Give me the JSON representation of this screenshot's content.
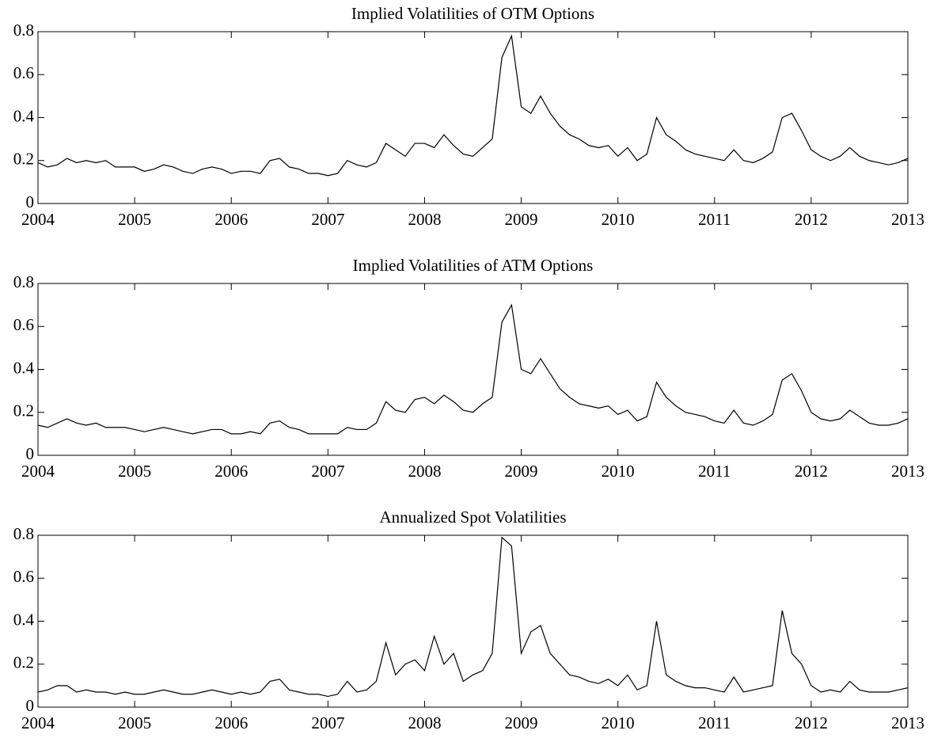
{
  "chart_data": [
    {
      "type": "line",
      "title": "Implied Volatilities of OTM Options",
      "x": [
        2004.0,
        2004.1,
        2004.2,
        2004.3,
        2004.4,
        2004.5,
        2004.6,
        2004.7,
        2004.8,
        2004.9,
        2005.0,
        2005.1,
        2005.2,
        2005.3,
        2005.4,
        2005.5,
        2005.6,
        2005.7,
        2005.8,
        2005.9,
        2006.0,
        2006.1,
        2006.2,
        2006.3,
        2006.4,
        2006.5,
        2006.6,
        2006.7,
        2006.8,
        2006.9,
        2007.0,
        2007.1,
        2007.2,
        2007.3,
        2007.4,
        2007.5,
        2007.6,
        2007.7,
        2007.8,
        2007.9,
        2008.0,
        2008.1,
        2008.2,
        2008.3,
        2008.4,
        2008.5,
        2008.6,
        2008.7,
        2008.8,
        2008.9,
        2009.0,
        2009.1,
        2009.2,
        2009.3,
        2009.4,
        2009.5,
        2009.6,
        2009.7,
        2009.8,
        2009.9,
        2010.0,
        2010.1,
        2010.2,
        2010.3,
        2010.4,
        2010.5,
        2010.6,
        2010.7,
        2010.8,
        2010.9,
        2011.0,
        2011.1,
        2011.2,
        2011.3,
        2011.4,
        2011.5,
        2011.6,
        2011.7,
        2011.8,
        2011.9,
        2012.0,
        2012.1,
        2012.2,
        2012.3,
        2012.4,
        2012.5,
        2012.6,
        2012.7,
        2012.8,
        2012.9,
        2013.0
      ],
      "series": [
        {
          "color": "#000000",
          "values": [
            0.19,
            0.17,
            0.18,
            0.21,
            0.19,
            0.2,
            0.19,
            0.2,
            0.17,
            0.17,
            0.17,
            0.15,
            0.16,
            0.18,
            0.17,
            0.15,
            0.14,
            0.16,
            0.17,
            0.16,
            0.14,
            0.15,
            0.15,
            0.14,
            0.2,
            0.21,
            0.17,
            0.16,
            0.14,
            0.14,
            0.13,
            0.14,
            0.2,
            0.18,
            0.17,
            0.19,
            0.28,
            0.25,
            0.22,
            0.28,
            0.28,
            0.26,
            0.32,
            0.27,
            0.23,
            0.22,
            0.26,
            0.3,
            0.68,
            0.78,
            0.45,
            0.42,
            0.5,
            0.42,
            0.36,
            0.32,
            0.3,
            0.27,
            0.26,
            0.27,
            0.22,
            0.26,
            0.2,
            0.23,
            0.4,
            0.32,
            0.29,
            0.25,
            0.23,
            0.22,
            0.21,
            0.2,
            0.25,
            0.2,
            0.19,
            0.21,
            0.24,
            0.4,
            0.42,
            0.34,
            0.25,
            0.22,
            0.2,
            0.22,
            0.26,
            0.22,
            0.2,
            0.19,
            0.18,
            0.19,
            0.21
          ]
        }
      ],
      "xlim": [
        2004,
        2013
      ],
      "ylim": [
        0,
        0.8
      ],
      "xticks": [
        2004,
        2005,
        2006,
        2007,
        2008,
        2009,
        2010,
        2011,
        2012,
        2013
      ],
      "yticks": [
        0,
        0.2,
        0.4,
        0.6,
        0.8
      ]
    },
    {
      "type": "line",
      "title": "Implied Volatilities of ATM Options",
      "x": [
        2004.0,
        2004.1,
        2004.2,
        2004.3,
        2004.4,
        2004.5,
        2004.6,
        2004.7,
        2004.8,
        2004.9,
        2005.0,
        2005.1,
        2005.2,
        2005.3,
        2005.4,
        2005.5,
        2005.6,
        2005.7,
        2005.8,
        2005.9,
        2006.0,
        2006.1,
        2006.2,
        2006.3,
        2006.4,
        2006.5,
        2006.6,
        2006.7,
        2006.8,
        2006.9,
        2007.0,
        2007.1,
        2007.2,
        2007.3,
        2007.4,
        2007.5,
        2007.6,
        2007.7,
        2007.8,
        2007.9,
        2008.0,
        2008.1,
        2008.2,
        2008.3,
        2008.4,
        2008.5,
        2008.6,
        2008.7,
        2008.8,
        2008.9,
        2009.0,
        2009.1,
        2009.2,
        2009.3,
        2009.4,
        2009.5,
        2009.6,
        2009.7,
        2009.8,
        2009.9,
        2010.0,
        2010.1,
        2010.2,
        2010.3,
        2010.4,
        2010.5,
        2010.6,
        2010.7,
        2010.8,
        2010.9,
        2011.0,
        2011.1,
        2011.2,
        2011.3,
        2011.4,
        2011.5,
        2011.6,
        2011.7,
        2011.8,
        2011.9,
        2012.0,
        2012.1,
        2012.2,
        2012.3,
        2012.4,
        2012.5,
        2012.6,
        2012.7,
        2012.8,
        2012.9,
        2013.0
      ],
      "series": [
        {
          "color": "#000000",
          "values": [
            0.14,
            0.13,
            0.15,
            0.17,
            0.15,
            0.14,
            0.15,
            0.13,
            0.13,
            0.13,
            0.12,
            0.11,
            0.12,
            0.13,
            0.12,
            0.11,
            0.1,
            0.11,
            0.12,
            0.12,
            0.1,
            0.1,
            0.11,
            0.1,
            0.15,
            0.16,
            0.13,
            0.12,
            0.1,
            0.1,
            0.1,
            0.1,
            0.13,
            0.12,
            0.12,
            0.15,
            0.25,
            0.21,
            0.2,
            0.26,
            0.27,
            0.24,
            0.28,
            0.25,
            0.21,
            0.2,
            0.24,
            0.27,
            0.62,
            0.7,
            0.4,
            0.38,
            0.45,
            0.38,
            0.31,
            0.27,
            0.24,
            0.23,
            0.22,
            0.23,
            0.19,
            0.21,
            0.16,
            0.18,
            0.34,
            0.27,
            0.23,
            0.2,
            0.19,
            0.18,
            0.16,
            0.15,
            0.21,
            0.15,
            0.14,
            0.16,
            0.19,
            0.35,
            0.38,
            0.3,
            0.2,
            0.17,
            0.16,
            0.17,
            0.21,
            0.18,
            0.15,
            0.14,
            0.14,
            0.15,
            0.17
          ]
        }
      ],
      "xlim": [
        2004,
        2013
      ],
      "ylim": [
        0,
        0.8
      ],
      "xticks": [
        2004,
        2005,
        2006,
        2007,
        2008,
        2009,
        2010,
        2011,
        2012,
        2013
      ],
      "yticks": [
        0,
        0.2,
        0.4,
        0.6,
        0.8
      ]
    },
    {
      "type": "line",
      "title": "Annualized Spot Volatilities",
      "x": [
        2004.0,
        2004.1,
        2004.2,
        2004.3,
        2004.4,
        2004.5,
        2004.6,
        2004.7,
        2004.8,
        2004.9,
        2005.0,
        2005.1,
        2005.2,
        2005.3,
        2005.4,
        2005.5,
        2005.6,
        2005.7,
        2005.8,
        2005.9,
        2006.0,
        2006.1,
        2006.2,
        2006.3,
        2006.4,
        2006.5,
        2006.6,
        2006.7,
        2006.8,
        2006.9,
        2007.0,
        2007.1,
        2007.2,
        2007.3,
        2007.4,
        2007.5,
        2007.6,
        2007.7,
        2007.8,
        2007.9,
        2008.0,
        2008.1,
        2008.2,
        2008.3,
        2008.4,
        2008.5,
        2008.6,
        2008.7,
        2008.8,
        2008.9,
        2009.0,
        2009.1,
        2009.2,
        2009.3,
        2009.4,
        2009.5,
        2009.6,
        2009.7,
        2009.8,
        2009.9,
        2010.0,
        2010.1,
        2010.2,
        2010.3,
        2010.4,
        2010.5,
        2010.6,
        2010.7,
        2010.8,
        2010.9,
        2011.0,
        2011.1,
        2011.2,
        2011.3,
        2011.4,
        2011.5,
        2011.6,
        2011.7,
        2011.8,
        2011.9,
        2012.0,
        2012.1,
        2012.2,
        2012.3,
        2012.4,
        2012.5,
        2012.6,
        2012.7,
        2012.8,
        2012.9,
        2013.0
      ],
      "series": [
        {
          "color": "#000000",
          "values": [
            0.07,
            0.08,
            0.1,
            0.1,
            0.07,
            0.08,
            0.07,
            0.07,
            0.06,
            0.07,
            0.06,
            0.06,
            0.07,
            0.08,
            0.07,
            0.06,
            0.06,
            0.07,
            0.08,
            0.07,
            0.06,
            0.07,
            0.06,
            0.07,
            0.12,
            0.13,
            0.08,
            0.07,
            0.06,
            0.06,
            0.05,
            0.06,
            0.12,
            0.07,
            0.08,
            0.12,
            0.3,
            0.15,
            0.2,
            0.22,
            0.17,
            0.33,
            0.2,
            0.25,
            0.12,
            0.15,
            0.17,
            0.25,
            0.79,
            0.75,
            0.25,
            0.35,
            0.38,
            0.25,
            0.2,
            0.15,
            0.14,
            0.12,
            0.11,
            0.13,
            0.1,
            0.15,
            0.08,
            0.1,
            0.4,
            0.15,
            0.12,
            0.1,
            0.09,
            0.09,
            0.08,
            0.07,
            0.14,
            0.07,
            0.08,
            0.09,
            0.1,
            0.45,
            0.25,
            0.2,
            0.1,
            0.07,
            0.08,
            0.07,
            0.12,
            0.08,
            0.07,
            0.07,
            0.07,
            0.08,
            0.09
          ]
        }
      ],
      "xlim": [
        2004,
        2013
      ],
      "ylim": [
        0,
        0.8
      ],
      "xticks": [
        2004,
        2005,
        2006,
        2007,
        2008,
        2009,
        2010,
        2011,
        2012,
        2013
      ],
      "yticks": [
        0,
        0.2,
        0.4,
        0.6,
        0.8
      ]
    }
  ]
}
